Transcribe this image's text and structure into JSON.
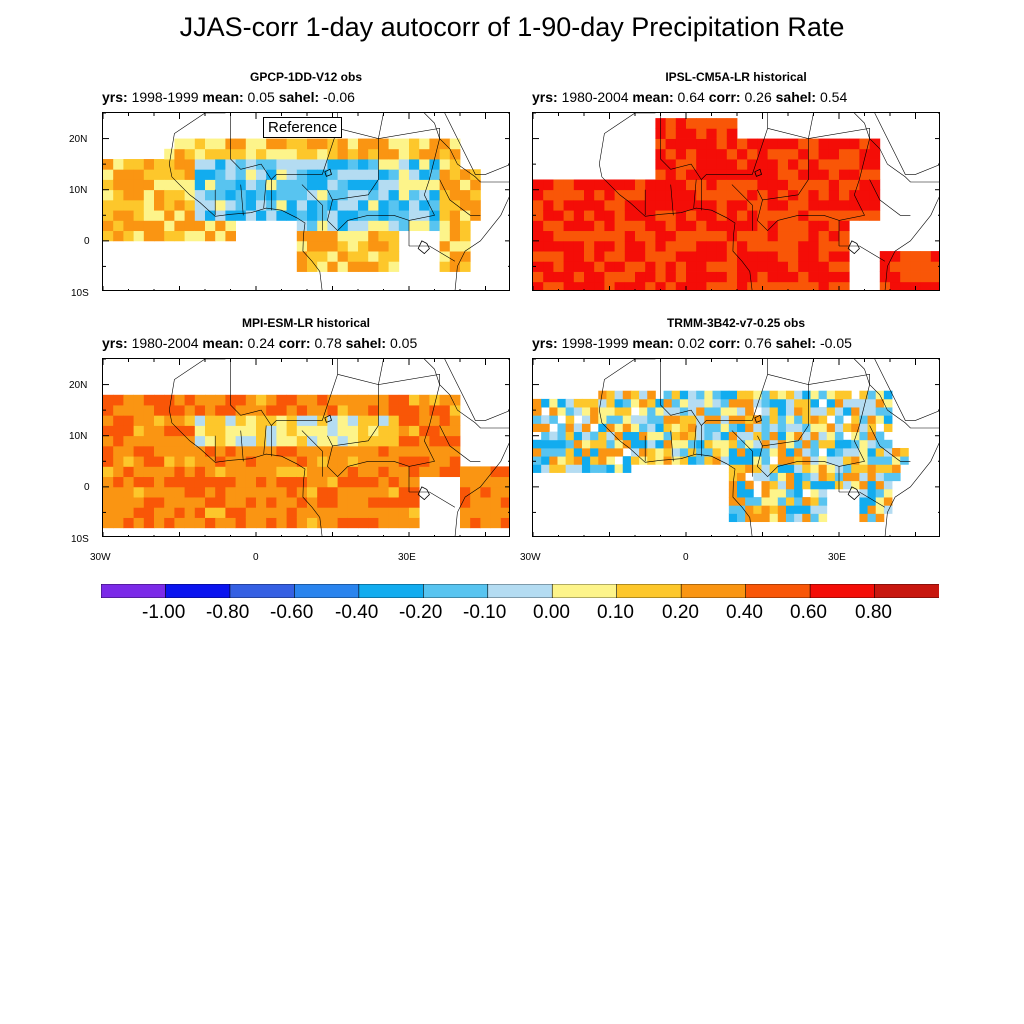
{
  "title": "JJAS-corr 1-day autocorr of 1-90-day Precipitation Rate",
  "reference_label": "Reference",
  "stat_labels": {
    "yrs": "yrs:",
    "mean": "mean:",
    "corr": "corr:",
    "sahel": "sahel:"
  },
  "axes": {
    "lat_ticks": [
      "20N",
      "10N",
      "0",
      "10S"
    ],
    "lon_ticks": [
      "30W",
      "0",
      "30E"
    ]
  },
  "colorbar": {
    "labels": [
      "-1.00",
      "-0.80",
      "-0.60",
      "-0.40",
      "-0.20",
      "-0.10",
      "0.00",
      "0.10",
      "0.20",
      "0.40",
      "0.60",
      "0.80"
    ],
    "colors": [
      "#7b2ae8",
      "#0a14ef",
      "#3560e3",
      "#2a84ee",
      "#12acef",
      "#58c4f0",
      "#b4dcf2",
      "#fdf48a",
      "#fdc72b",
      "#fa9512",
      "#f95607",
      "#f40d07",
      "#c8170f"
    ]
  },
  "chart_data": [
    {
      "type": "heatmap",
      "title": "GPCP-1DD-V12 obs",
      "years": "1998-1999",
      "mean": "0.05",
      "corr": "",
      "sahel": "-0.06",
      "reference": true,
      "lon_range": [
        -30,
        50
      ],
      "lat_range": [
        -10,
        25
      ]
    },
    {
      "type": "heatmap",
      "title": "IPSL-CM5A-LR historical",
      "years": "1980-2004",
      "mean": "0.64",
      "corr": "0.26",
      "sahel": "0.54",
      "reference": false,
      "lon_range": [
        -30,
        50
      ],
      "lat_range": [
        -10,
        25
      ]
    },
    {
      "type": "heatmap",
      "title": "MPI-ESM-LR historical",
      "years": "1980-2004",
      "mean": "0.24",
      "corr": "0.78",
      "sahel": "0.05",
      "reference": false,
      "lon_range": [
        -30,
        50
      ],
      "lat_range": [
        -10,
        25
      ]
    },
    {
      "type": "heatmap",
      "title": "TRMM-3B42-v7-0.25 obs",
      "years": "1998-1999",
      "mean": "0.02",
      "corr": "0.76",
      "sahel": "-0.05",
      "reference": false,
      "lon_range": [
        -30,
        50
      ],
      "lat_range": [
        -10,
        25
      ]
    }
  ]
}
